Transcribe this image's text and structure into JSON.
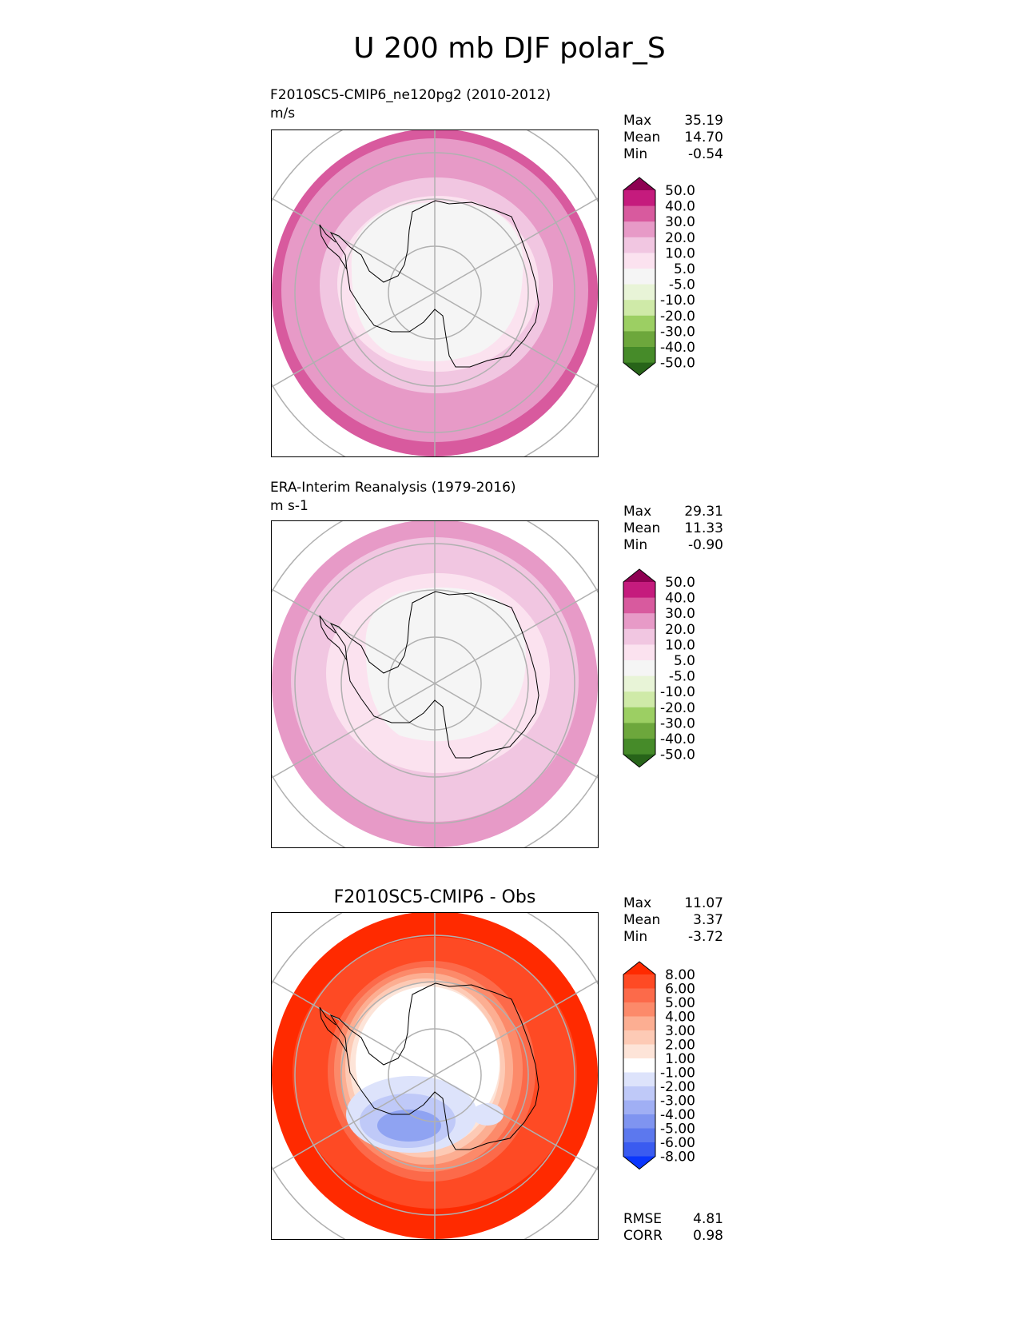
{
  "page_title": "U 200 mb DJF polar_S",
  "chart_data": [
    {
      "type": "heatmap",
      "projection": "south polar stereographic",
      "title": "F2010SC5-CMIP6_ne120pg2 (2010-2012)",
      "units": "m/s",
      "stats": {
        "max_label": "Max",
        "max": "35.19",
        "mean_label": "Mean",
        "mean": "14.70",
        "min_label": "Min",
        "min": "-0.54"
      },
      "colorbar": {
        "labels": [
          "50.0",
          "40.0",
          "30.0",
          "20.0",
          "10.0",
          "5.0",
          "-5.0",
          "-10.0",
          "-20.0",
          "-30.0",
          "-40.0",
          "-50.0"
        ],
        "colors": [
          "#8e0152",
          "#c51b7d",
          "#d85a9e",
          "#e79ac7",
          "#f1c6e1",
          "#fbe2ef",
          "#f5f5f5",
          "#e8f4d7",
          "#cfeaa8",
          "#9ccf63",
          "#6da73c",
          "#468b29",
          "#276419"
        ]
      },
      "zones": [
        {
          "level": "20.0 to 30.0",
          "color": "#e79ac7"
        },
        {
          "level": "10.0 to 20.0",
          "color": "#f1c6e1"
        },
        {
          "level": "5.0 to 10.0",
          "color": "#fbe2ef"
        },
        {
          "level": "-5.0 to 5.0",
          "color": "#f5f5f5"
        },
        {
          "level": "30.0 to 40.0",
          "color": "#d85a9e"
        }
      ]
    },
    {
      "type": "heatmap",
      "projection": "south polar stereographic",
      "title": "ERA-Interim Reanalysis (1979-2016)",
      "units": "m s-1",
      "stats": {
        "max_label": "Max",
        "max": "29.31",
        "mean_label": "Mean",
        "mean": "11.33",
        "min_label": "Min",
        "min": "-0.90"
      },
      "colorbar": {
        "labels": [
          "50.0",
          "40.0",
          "30.0",
          "20.0",
          "10.0",
          "5.0",
          "-5.0",
          "-10.0",
          "-20.0",
          "-30.0",
          "-40.0",
          "-50.0"
        ],
        "colors": [
          "#8e0152",
          "#c51b7d",
          "#d85a9e",
          "#e79ac7",
          "#f1c6e1",
          "#fbe2ef",
          "#f5f5f5",
          "#e8f4d7",
          "#cfeaa8",
          "#9ccf63",
          "#6da73c",
          "#468b29",
          "#276419"
        ]
      },
      "zones": [
        {
          "level": "20.0 to 30.0",
          "color": "#e79ac7"
        },
        {
          "level": "10.0 to 20.0",
          "color": "#f1c6e1"
        },
        {
          "level": "5.0 to 10.0",
          "color": "#fbe2ef"
        },
        {
          "level": "-5.0 to 5.0",
          "color": "#f5f5f5"
        }
      ]
    },
    {
      "type": "heatmap",
      "projection": "south polar stereographic",
      "title": "F2010SC5-CMIP6 - Obs",
      "stats": {
        "max_label": "Max",
        "max": "11.07",
        "mean_label": "Mean",
        "mean": "3.37",
        "min_label": "Min",
        "min": "-3.72"
      },
      "bottom_stats": {
        "rmse_label": "RMSE",
        "rmse": "4.81",
        "corr_label": "CORR",
        "corr": "0.98"
      },
      "colorbar": {
        "labels": [
          "8.00",
          "6.00",
          "5.00",
          "4.00",
          "3.00",
          "2.00",
          "1.00",
          "-1.00",
          "-2.00",
          "-3.00",
          "-4.00",
          "-5.00",
          "-6.00",
          "-8.00"
        ],
        "colors": [
          "#ff2a00",
          "#fe4a24",
          "#fc6a4a",
          "#fc8a6a",
          "#fcae92",
          "#fdcab5",
          "#fde4d8",
          "#ffffff",
          "#dde3fb",
          "#bfc9f8",
          "#a0aff4",
          "#7f94f0",
          "#5c78ee",
          "#3a5bf0",
          "#0a36fd"
        ]
      },
      "zones": [
        {
          "level": "above 8.00",
          "color": "#ff2a00"
        },
        {
          "level": "6.00 to 8.00",
          "color": "#fe4a24"
        },
        {
          "level": "5.00 to 6.00",
          "color": "#fc6a4a"
        },
        {
          "level": "4.00 to 5.00",
          "color": "#fc8a6a"
        },
        {
          "level": "3.00 to 4.00",
          "color": "#fcae92"
        },
        {
          "level": "2.00 to 3.00",
          "color": "#fdcab5"
        },
        {
          "level": "1.00 to 2.00",
          "color": "#fde4d8"
        },
        {
          "level": "-1.00 to 1.00",
          "color": "#ffffff"
        },
        {
          "level": "-2.00 to -1.00",
          "color": "#dde3fb"
        },
        {
          "level": "-3.00 to -2.00",
          "color": "#bfc9f8"
        },
        {
          "level": "-4.00 to -3.00",
          "color": "#8fa3f2"
        }
      ]
    }
  ],
  "colors": {
    "graticule": "#b0b0b0",
    "coastline": "#000000",
    "frame": "#000000"
  }
}
